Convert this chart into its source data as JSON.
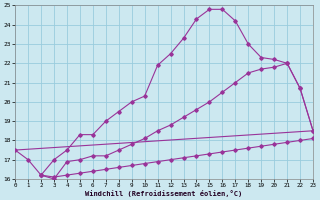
{
  "xlabel": "Windchill (Refroidissement éolien,°C)",
  "xlim": [
    0,
    23
  ],
  "ylim": [
    16,
    25
  ],
  "xticks": [
    0,
    1,
    2,
    3,
    4,
    5,
    6,
    7,
    8,
    9,
    10,
    11,
    12,
    13,
    14,
    15,
    16,
    17,
    18,
    19,
    20,
    21,
    22,
    23
  ],
  "yticks": [
    16,
    17,
    18,
    19,
    20,
    21,
    22,
    23,
    24,
    25
  ],
  "background_color": "#cce8f0",
  "grid_color": "#99ccdd",
  "line_color": "#993399",
  "line1_x": [
    0,
    1,
    2,
    3,
    4,
    5,
    6,
    7,
    8,
    9,
    10,
    11,
    12,
    13,
    14,
    15,
    16,
    17,
    18,
    19,
    20,
    21,
    22,
    23
  ],
  "line1_y": [
    17.5,
    17.0,
    16.2,
    17.0,
    17.5,
    18.3,
    18.3,
    19.0,
    19.5,
    20.0,
    20.3,
    21.9,
    22.5,
    23.3,
    24.3,
    24.8,
    24.8,
    24.2,
    23.0,
    22.3,
    22.2,
    22.0,
    20.7,
    18.5
  ],
  "line2_x": [
    2,
    3,
    4,
    5,
    6,
    7,
    8,
    9,
    10,
    11,
    12,
    13,
    14,
    15,
    16,
    17,
    18,
    19,
    20,
    21,
    22,
    23
  ],
  "line2_y": [
    16.2,
    16.0,
    16.9,
    17.0,
    17.2,
    17.2,
    17.5,
    17.8,
    18.1,
    18.5,
    18.8,
    19.2,
    19.6,
    20.0,
    20.5,
    21.0,
    21.5,
    21.7,
    21.8,
    22.0,
    20.7,
    18.5
  ],
  "line3_x": [
    2,
    3,
    4,
    5,
    6,
    7,
    8,
    9,
    10,
    11,
    12,
    13,
    14,
    15,
    16,
    17,
    18,
    19,
    20,
    21,
    22,
    23
  ],
  "line3_y": [
    16.2,
    16.1,
    16.2,
    16.3,
    16.4,
    16.5,
    16.6,
    16.7,
    16.8,
    16.9,
    17.0,
    17.1,
    17.2,
    17.3,
    17.4,
    17.5,
    17.6,
    17.7,
    17.8,
    17.9,
    18.0,
    18.1
  ],
  "line4_x": [
    0,
    23
  ],
  "line4_y": [
    17.5,
    18.5
  ]
}
